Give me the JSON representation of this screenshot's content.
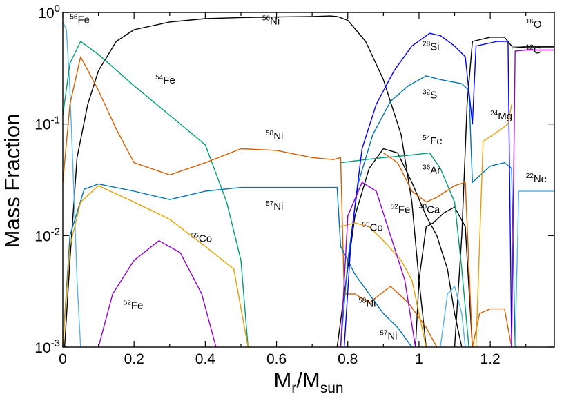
{
  "chart_data": {
    "type": "line",
    "xlabel": {
      "main": "M",
      "sub1": "r",
      "mid": "/M",
      "sub2": "sun"
    },
    "ylabel": "Mass Fraction",
    "xlim": [
      0,
      1.38
    ],
    "ylim": [
      0.001,
      1
    ],
    "yscale": "log",
    "grid": false,
    "x_ticks": [
      0,
      0.2,
      0.4,
      0.6,
      0.8,
      1,
      1.2
    ],
    "x_tick_labels": [
      "0",
      "0.2",
      "0.4",
      "0.6",
      "0.8",
      "1",
      "1.2"
    ],
    "y_ticks": [
      0.001,
      0.01,
      0.1,
      1
    ],
    "y_tick_labels": [
      {
        "base": "10",
        "exp": "-3"
      },
      {
        "base": "10",
        "exp": "-2"
      },
      {
        "base": "10",
        "exp": "-1"
      },
      {
        "base": "10",
        "exp": "0"
      }
    ],
    "annotations": [
      {
        "sup": "56",
        "text": "Fe",
        "x": 0.02,
        "y": 0.8
      },
      {
        "sup": "56",
        "text": "Ni",
        "x": 0.56,
        "y": 0.78
      },
      {
        "sup": "54",
        "text": "Fe",
        "x": 0.26,
        "y": 0.23
      },
      {
        "sup": "58",
        "text": "Ni",
        "x": 0.57,
        "y": 0.073
      },
      {
        "sup": "57",
        "text": "Ni",
        "x": 0.57,
        "y": 0.017
      },
      {
        "sup": "55",
        "text": "Co",
        "x": 0.36,
        "y": 0.0088
      },
      {
        "sup": "52",
        "text": "Fe",
        "x": 0.17,
        "y": 0.0022
      },
      {
        "sup": "28",
        "text": "Si",
        "x": 1.01,
        "y": 0.46
      },
      {
        "sup": "32",
        "text": "S",
        "x": 1.01,
        "y": 0.17
      },
      {
        "sup": "16",
        "text": "O",
        "x": 1.3,
        "y": 0.73
      },
      {
        "sup": "12",
        "text": "C",
        "x": 1.3,
        "y": 0.43
      },
      {
        "sup": "24",
        "text": "Mg",
        "x": 1.2,
        "y": 0.11
      },
      {
        "sup": "54",
        "text": "Fe",
        "x": 1.01,
        "y": 0.066
      },
      {
        "sup": "36",
        "text": "Ar",
        "x": 1.01,
        "y": 0.036
      },
      {
        "sup": "22",
        "text": "Ne",
        "x": 1.3,
        "y": 0.03
      },
      {
        "sup": "52",
        "text": "Fe",
        "x": 0.92,
        "y": 0.016
      },
      {
        "sup": "40",
        "text": "Ca",
        "x": 1.0,
        "y": 0.016
      },
      {
        "sup": "55",
        "text": "Co",
        "x": 0.84,
        "y": 0.011
      },
      {
        "sup": "58",
        "text": "Ni",
        "x": 0.83,
        "y": 0.0023
      },
      {
        "sup": "57",
        "text": "Ni",
        "x": 0.89,
        "y": 0.00118
      }
    ],
    "series": [
      {
        "id": "ni56",
        "color": "#000000",
        "points": [
          [
            0.005,
            0.001
          ],
          [
            0.02,
            0.006
          ],
          [
            0.04,
            0.05
          ],
          [
            0.07,
            0.15
          ],
          [
            0.1,
            0.3
          ],
          [
            0.15,
            0.55
          ],
          [
            0.2,
            0.7
          ],
          [
            0.3,
            0.82
          ],
          [
            0.4,
            0.88
          ],
          [
            0.5,
            0.9
          ],
          [
            0.6,
            0.91
          ],
          [
            0.7,
            0.92
          ],
          [
            0.75,
            0.93
          ],
          [
            0.77,
            0.92
          ],
          [
            0.8,
            0.85
          ],
          [
            0.85,
            0.55
          ],
          [
            0.9,
            0.25
          ],
          [
            0.95,
            0.08
          ],
          [
            0.98,
            0.02
          ],
          [
            1.0,
            0.004
          ],
          [
            1.02,
            0.001
          ]
        ]
      },
      {
        "id": "ni56-outer",
        "color": "#000000",
        "points": [
          [
            1.1,
            0.001
          ],
          [
            1.12,
            0.01
          ],
          [
            1.135,
            0.15
          ],
          [
            1.15,
            0.55
          ],
          [
            1.2,
            0.6
          ],
          [
            1.24,
            0.6
          ],
          [
            1.26,
            0.5
          ],
          [
            1.38,
            0.5
          ]
        ]
      },
      {
        "id": "o16",
        "color": "#000000",
        "points": [
          [
            1.26,
            0.48
          ],
          [
            1.3,
            0.49
          ],
          [
            1.38,
            0.49
          ]
        ]
      },
      {
        "id": "ca40",
        "color": "#000000",
        "points": [
          [
            0.77,
            0.001
          ],
          [
            0.79,
            0.003
          ],
          [
            0.82,
            0.015
          ],
          [
            0.86,
            0.04
          ],
          [
            0.9,
            0.06
          ],
          [
            0.94,
            0.055
          ],
          [
            0.98,
            0.03
          ],
          [
            1.02,
            0.015
          ],
          [
            1.05,
            0.01
          ],
          [
            1.08,
            0.005
          ],
          [
            1.1,
            0.002
          ],
          [
            1.12,
            0.001
          ]
        ]
      },
      {
        "id": "ca40-b",
        "color": "#000000",
        "points": [
          [
            0.99,
            0.001
          ],
          [
            1.0,
            0.004
          ],
          [
            1.02,
            0.012
          ],
          [
            1.04,
            0.013
          ],
          [
            1.07,
            0.016
          ],
          [
            1.1,
            0.018
          ],
          [
            1.13,
            0.012
          ],
          [
            1.15,
            0.001
          ]
        ]
      },
      {
        "id": "fe56",
        "color": "#56b4e9",
        "points": [
          [
            0.0,
            0.82
          ],
          [
            0.01,
            0.7
          ],
          [
            0.02,
            0.2
          ],
          [
            0.03,
            0.03
          ],
          [
            0.04,
            0.004
          ],
          [
            0.05,
            0.001
          ]
        ]
      },
      {
        "id": "fe54",
        "color": "#009e73",
        "points": [
          [
            0.0,
            0.12
          ],
          [
            0.02,
            0.35
          ],
          [
            0.05,
            0.55
          ],
          [
            0.1,
            0.42
          ],
          [
            0.2,
            0.22
          ],
          [
            0.3,
            0.12
          ],
          [
            0.4,
            0.065
          ],
          [
            0.46,
            0.02
          ],
          [
            0.5,
            0.006
          ],
          [
            0.52,
            0.001
          ]
        ]
      },
      {
        "id": "fe54-b",
        "color": "#009e73",
        "points": [
          [
            0.78,
            0.045
          ],
          [
            0.85,
            0.048
          ],
          [
            0.9,
            0.05
          ],
          [
            0.96,
            0.052
          ],
          [
            1.03,
            0.055
          ],
          [
            1.06,
            0.04
          ],
          [
            1.1,
            0.02
          ],
          [
            1.12,
            0.005
          ],
          [
            1.14,
            0.001
          ]
        ]
      },
      {
        "id": "ni58",
        "color": "#d55e00",
        "points": [
          [
            0.0,
            0.03
          ],
          [
            0.02,
            0.15
          ],
          [
            0.05,
            0.4
          ],
          [
            0.1,
            0.2
          ],
          [
            0.15,
            0.09
          ],
          [
            0.2,
            0.045
          ],
          [
            0.3,
            0.035
          ],
          [
            0.4,
            0.045
          ],
          [
            0.5,
            0.06
          ],
          [
            0.6,
            0.058
          ],
          [
            0.7,
            0.05
          ],
          [
            0.76,
            0.048
          ],
          [
            0.78,
            0.05
          ],
          [
            0.79,
            0.003
          ],
          [
            0.82,
            0.003
          ],
          [
            0.86,
            0.0025
          ],
          [
            0.92,
            0.0035
          ],
          [
            0.97,
            0.0025
          ],
          [
            1.02,
            0.0015
          ],
          [
            1.05,
            0.001
          ]
        ]
      },
      {
        "id": "ni58-b",
        "color": "#d55e00",
        "points": [
          [
            0.9,
            0.055
          ],
          [
            0.94,
            0.045
          ],
          [
            0.98,
            0.025
          ],
          [
            1.02,
            0.02
          ],
          [
            1.05,
            0.022
          ],
          [
            1.1,
            0.028
          ],
          [
            1.13,
            0.03
          ],
          [
            1.15,
            0.001
          ]
        ]
      },
      {
        "id": "ni58-c",
        "color": "#d55e00",
        "points": [
          [
            1.15,
            0.001
          ],
          [
            1.17,
            0.002
          ],
          [
            1.2,
            0.0022
          ],
          [
            1.24,
            0.0022
          ],
          [
            1.26,
            0.001
          ]
        ]
      },
      {
        "id": "ni57",
        "color": "#0072b2",
        "points": [
          [
            0.0,
            0.001
          ],
          [
            0.02,
            0.01
          ],
          [
            0.06,
            0.026
          ],
          [
            0.1,
            0.029
          ],
          [
            0.2,
            0.025
          ],
          [
            0.3,
            0.021
          ],
          [
            0.4,
            0.025
          ],
          [
            0.5,
            0.027
          ],
          [
            0.6,
            0.027
          ],
          [
            0.7,
            0.027
          ],
          [
            0.77,
            0.027
          ],
          [
            0.78,
            0.008
          ],
          [
            0.82,
            0.0045
          ],
          [
            0.86,
            0.003
          ],
          [
            0.9,
            0.002
          ],
          [
            0.94,
            0.0015
          ],
          [
            0.98,
            0.001
          ]
        ]
      },
      {
        "id": "s32",
        "color": "#0072b2",
        "points": [
          [
            0.78,
            0.001
          ],
          [
            0.8,
            0.006
          ],
          [
            0.83,
            0.03
          ],
          [
            0.87,
            0.08
          ],
          [
            0.92,
            0.16
          ],
          [
            0.97,
            0.22
          ],
          [
            1.02,
            0.27
          ],
          [
            1.06,
            0.25
          ],
          [
            1.12,
            0.23
          ],
          [
            1.14,
            0.2
          ],
          [
            1.15,
            0.03
          ],
          [
            1.2,
            0.042
          ],
          [
            1.24,
            0.045
          ],
          [
            1.26,
            0.04
          ],
          [
            1.27,
            0.001
          ]
        ]
      },
      {
        "id": "si28",
        "color": "#0000ff",
        "points": [
          [
            0.79,
            0.001
          ],
          [
            0.81,
            0.01
          ],
          [
            0.84,
            0.06
          ],
          [
            0.88,
            0.15
          ],
          [
            0.93,
            0.3
          ],
          [
            0.98,
            0.5
          ],
          [
            1.03,
            0.65
          ],
          [
            1.06,
            0.62
          ],
          [
            1.1,
            0.5
          ],
          [
            1.13,
            0.4
          ],
          [
            1.15,
            0.1
          ],
          [
            1.16,
            0.5
          ],
          [
            1.22,
            0.55
          ],
          [
            1.25,
            0.55
          ],
          [
            1.26,
            0.001
          ]
        ]
      },
      {
        "id": "co55",
        "color": "#e69f00",
        "points": [
          [
            0.0,
            0.001
          ],
          [
            0.02,
            0.008
          ],
          [
            0.05,
            0.02
          ],
          [
            0.1,
            0.028
          ],
          [
            0.2,
            0.02
          ],
          [
            0.3,
            0.014
          ],
          [
            0.4,
            0.008
          ],
          [
            0.48,
            0.005
          ],
          [
            0.52,
            0.001
          ]
        ]
      },
      {
        "id": "co55-b",
        "color": "#e69f00",
        "points": [
          [
            0.78,
            0.012
          ],
          [
            0.82,
            0.013
          ],
          [
            0.86,
            0.012
          ],
          [
            0.9,
            0.009
          ],
          [
            0.95,
            0.006
          ],
          [
            0.98,
            0.004
          ],
          [
            1.0,
            0.002
          ],
          [
            1.02,
            0.001
          ]
        ]
      },
      {
        "id": "mg24",
        "color": "#e69f00",
        "points": [
          [
            1.16,
            0.001
          ],
          [
            1.18,
            0.07
          ],
          [
            1.22,
            0.085
          ],
          [
            1.25,
            0.1
          ],
          [
            1.26,
            0.15
          ]
        ]
      },
      {
        "id": "fe52",
        "color": "#9400d3",
        "points": [
          [
            0.1,
            0.001
          ],
          [
            0.14,
            0.003
          ],
          [
            0.2,
            0.006
          ],
          [
            0.27,
            0.009
          ],
          [
            0.33,
            0.007
          ],
          [
            0.39,
            0.003
          ],
          [
            0.43,
            0.001
          ]
        ]
      },
      {
        "id": "fe52-b",
        "color": "#9400d3",
        "points": [
          [
            0.78,
            0.001
          ],
          [
            0.8,
            0.015
          ],
          [
            0.84,
            0.03
          ],
          [
            0.88,
            0.025
          ],
          [
            0.92,
            0.01
          ],
          [
            0.96,
            0.004
          ],
          [
            0.99,
            0.001
          ]
        ]
      },
      {
        "id": "c12",
        "color": "#9400d3",
        "points": [
          [
            1.26,
            0.001
          ],
          [
            1.27,
            0.45
          ],
          [
            1.3,
            0.46
          ],
          [
            1.38,
            0.46
          ]
        ]
      },
      {
        "id": "ne22",
        "color": "#56b4e9",
        "points": [
          [
            1.06,
            0.001
          ],
          [
            1.08,
            0.003
          ],
          [
            1.1,
            0.0035
          ],
          [
            1.12,
            0.002
          ],
          [
            1.13,
            0.001
          ]
        ]
      },
      {
        "id": "ne22-b",
        "color": "#56b4e9",
        "points": [
          [
            1.27,
            0.001
          ],
          [
            1.28,
            0.025
          ],
          [
            1.38,
            0.025
          ]
        ]
      }
    ]
  }
}
